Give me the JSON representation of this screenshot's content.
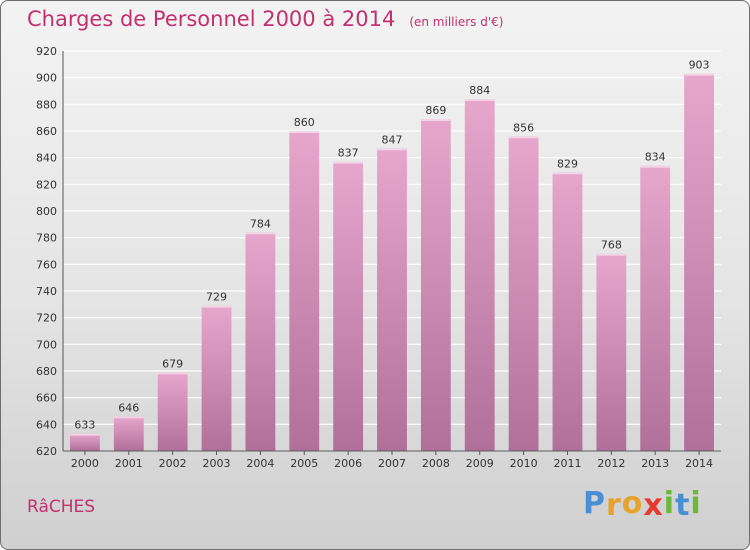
{
  "header": {
    "title": "Charges de Personnel 2000 à 2014",
    "subtitle": "(en milliers d'€)"
  },
  "commune": "RâCHES",
  "logo": {
    "letters": [
      {
        "ch": "P",
        "color": "#4a8fd6"
      },
      {
        "ch": "r",
        "color": "#e6a22a"
      },
      {
        "ch": "o",
        "color": "#e6a22a"
      },
      {
        "ch": "x",
        "color": "#e63a2e"
      },
      {
        "ch": "i",
        "color": "#6cb83a"
      },
      {
        "ch": "t",
        "color": "#4a8fd6"
      },
      {
        "ch": "i",
        "color": "#6cb83a"
      }
    ]
  },
  "colors": {
    "bar_top": "#e7a6cc",
    "bar_bottom": "#b0709a",
    "grid": "#ffffff",
    "accent": "#c2306e"
  },
  "chart_data": {
    "type": "bar",
    "categories": [
      "2000",
      "2001",
      "2002",
      "2003",
      "2004",
      "2005",
      "2006",
      "2007",
      "2008",
      "2009",
      "2010",
      "2011",
      "2012",
      "2013",
      "2014"
    ],
    "values": [
      633,
      646,
      679,
      729,
      784,
      860,
      837,
      847,
      869,
      884,
      856,
      829,
      768,
      834,
      903
    ],
    "ylim": [
      620,
      920
    ],
    "yticks": [
      620,
      640,
      660,
      680,
      700,
      720,
      740,
      760,
      780,
      800,
      820,
      840,
      860,
      880,
      900,
      920
    ],
    "grid": true,
    "data_labels": true
  }
}
